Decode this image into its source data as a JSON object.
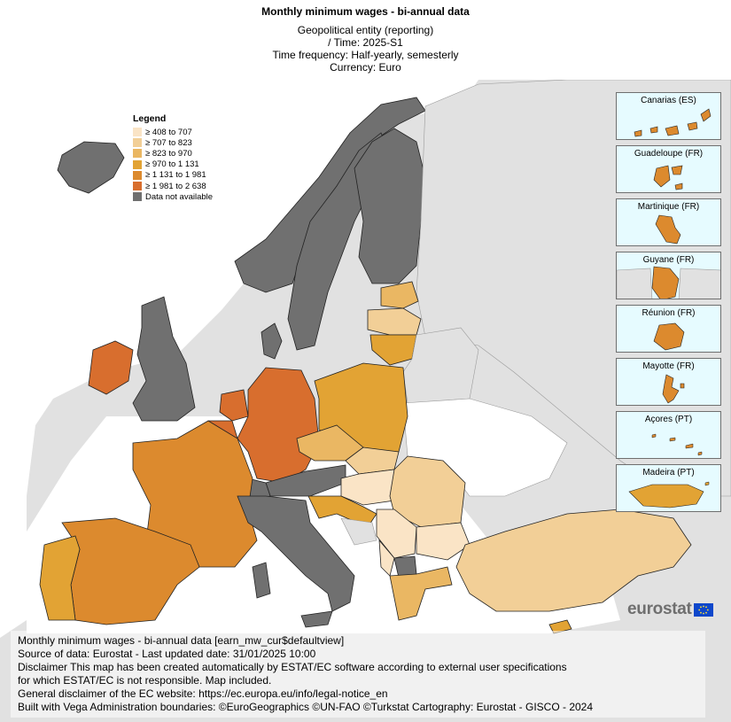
{
  "header": {
    "title": "Monthly minimum wages - bi-annual data",
    "line1": "Geopolitical entity (reporting)",
    "line2": "/ Time:  2025-S1",
    "line3": "Time frequency:  Half-yearly, semesterly",
    "line4": "Currency:  Euro"
  },
  "legend": {
    "title": "Legend",
    "items": [
      {
        "label": "≥ 408 to 707",
        "color": "#fae4c6"
      },
      {
        "label": "≥ 707 to 823",
        "color": "#f2cf97"
      },
      {
        "label": "≥ 823 to 970",
        "color": "#eab763"
      },
      {
        "label": "≥ 970 to 1 131",
        "color": "#e2a334"
      },
      {
        "label": "≥ 1 131 to 1 981",
        "color": "#dc8a2e"
      },
      {
        "label": "≥ 1 981 to 2 638",
        "color": "#d86e2e"
      },
      {
        "label": "Data not available",
        "color": "#707070"
      }
    ]
  },
  "insets": [
    {
      "label": "Canarias (ES)"
    },
    {
      "label": "Guadeloupe (FR)"
    },
    {
      "label": "Martinique (FR)"
    },
    {
      "label": "Guyane (FR)"
    },
    {
      "label": "Réunion (FR)"
    },
    {
      "label": "Mayotte (FR)"
    },
    {
      "label": "Açores (PT)"
    },
    {
      "label": "Madeira (PT)"
    }
  ],
  "logo": {
    "text": "eurostat"
  },
  "footer": {
    "line1": "Monthly minimum wages - bi-annual data [earn_mw_cur$defaultview]",
    "line2": "Source of data: Eurostat - Last updated date: 31/01/2025 10:00",
    "line3": "Disclaimer This map has been created automatically by ESTAT/EC software according to external user specifications",
    "line4": "for which ESTAT/EC is not responsible. Map included.",
    "line5": "General disclaimer of the EC website: https://ec.europa.eu/info/legal-notice_en",
    "line6": "Built with Vega Administration boundaries: ©EuroGeographics ©UN-FAO ©Turkstat Cartography: Eurostat - GISCO - 2024"
  }
}
